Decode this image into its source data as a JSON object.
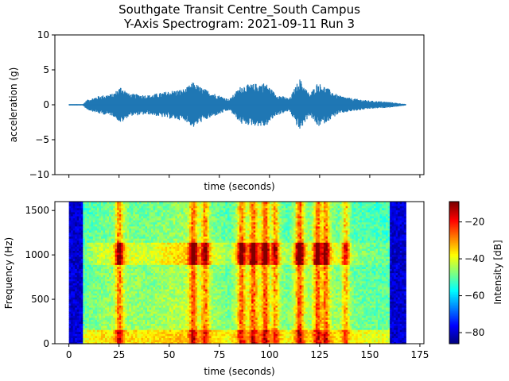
{
  "chart_data": [
    {
      "type": "line",
      "title_line1": "Southgate Transit Centre_South Campus",
      "title_line2": "Y-Axis Spectrogram: 2021-09-11 Run 3",
      "xlabel": "time (seconds)",
      "ylabel": "acceleration (g)",
      "xlim": [
        -7,
        177
      ],
      "ylim": [
        -10,
        10
      ],
      "yticks": [
        -10,
        -5,
        0,
        5,
        10
      ],
      "xticks": [
        0,
        25,
        50,
        75,
        100,
        125,
        150,
        175
      ],
      "x_tick_labels_shown": false,
      "series": [
        {
          "color": "#1f77b4",
          "signal_range_seconds": [
            0,
            168
          ],
          "envelope": [
            {
              "t": 0,
              "amp": 0.1
            },
            {
              "t": 7,
              "amp": 0.1
            },
            {
              "t": 9,
              "amp": 0.7
            },
            {
              "t": 15,
              "amp": 1.3
            },
            {
              "t": 22,
              "amp": 1.6
            },
            {
              "t": 26,
              "amp": 2.7
            },
            {
              "t": 30,
              "amp": 1.6
            },
            {
              "t": 40,
              "amp": 1.4
            },
            {
              "t": 50,
              "amp": 2.0
            },
            {
              "t": 58,
              "amp": 2.3
            },
            {
              "t": 62,
              "amp": 3.3
            },
            {
              "t": 66,
              "amp": 2.5
            },
            {
              "t": 72,
              "amp": 1.7
            },
            {
              "t": 80,
              "amp": 0.8
            },
            {
              "t": 86,
              "amp": 2.8
            },
            {
              "t": 92,
              "amp": 3.0
            },
            {
              "t": 98,
              "amp": 3.2
            },
            {
              "t": 103,
              "amp": 1.6
            },
            {
              "t": 110,
              "amp": 0.9
            },
            {
              "t": 115,
              "amp": 3.8
            },
            {
              "t": 120,
              "amp": 1.5
            },
            {
              "t": 124,
              "amp": 3.2
            },
            {
              "t": 128,
              "amp": 2.6
            },
            {
              "t": 134,
              "amp": 1.4
            },
            {
              "t": 140,
              "amp": 1.0
            },
            {
              "t": 150,
              "amp": 0.6
            },
            {
              "t": 160,
              "amp": 0.4
            },
            {
              "t": 168,
              "amp": 0.1
            }
          ]
        }
      ]
    },
    {
      "type": "heatmap",
      "xlabel": "time (seconds)",
      "ylabel": "Frequency (Hz)",
      "xlim": [
        -7,
        177
      ],
      "ylim": [
        0,
        1600
      ],
      "xticks": [
        0,
        25,
        50,
        75,
        100,
        125,
        150,
        175
      ],
      "yticks": [
        0,
        500,
        1000,
        1500
      ],
      "data_range_seconds": [
        0,
        168
      ],
      "colorbar": {
        "label": "Intensity [dB]",
        "colormap": "jet",
        "range": [
          -86,
          -9
        ],
        "ticks": [
          -80,
          -60,
          -40,
          -20
        ]
      },
      "features": {
        "quiet_edges_seconds": [
          [
            0,
            7
          ],
          [
            160,
            168
          ]
        ],
        "broadband_events_seconds": [
          25,
          62,
          68,
          86,
          92,
          98,
          103,
          115,
          124,
          128,
          138
        ],
        "high_intensity_band_hz": [
          900,
          1150
        ]
      }
    }
  ]
}
